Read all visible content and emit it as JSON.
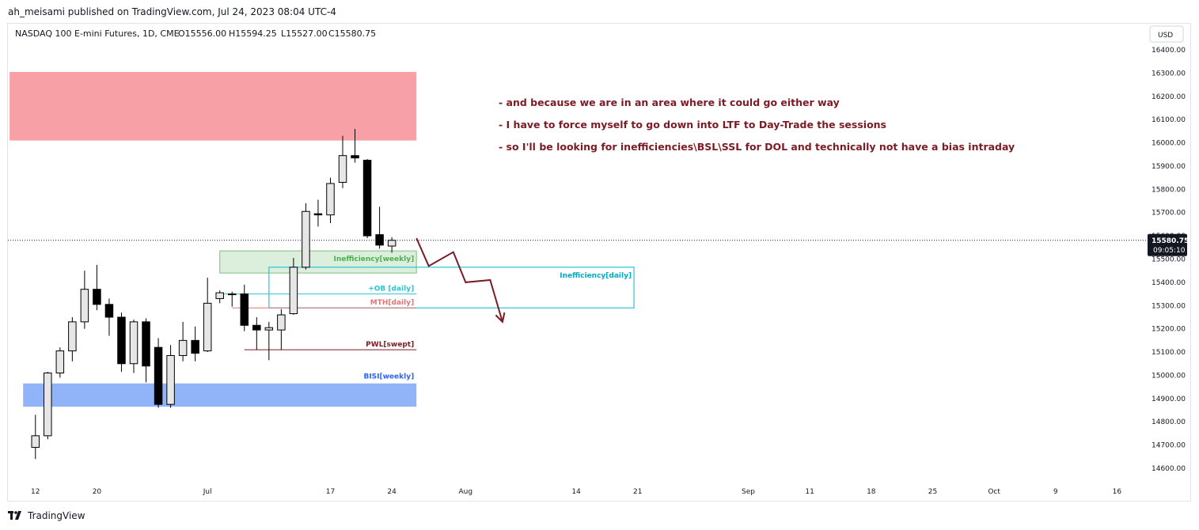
{
  "header": {
    "published_line": "ah_meisami published on TradingView.com, Jul 24, 2023 08:04 UTC-4"
  },
  "footer": {
    "brand": "TradingView"
  },
  "colors": {
    "bull_fill": "#e6e6e6",
    "bear_fill": "#000000",
    "candle_outline": "#000000",
    "note_text": "#7b1b24",
    "arrow": "#7b1b24",
    "price_tag_bg": "#131722"
  },
  "chart_data": {
    "type": "candlestick",
    "symbol_line": {
      "title": "NASDAQ 100 E-mini Futures, 1D, CME",
      "open": "O15556.00",
      "high": "H15594.25",
      "low": "L15527.00",
      "close": "C15580.75"
    },
    "currency_label": "USD",
    "y_range": [
      14540,
      16460
    ],
    "y_ticks": [
      "16400.00",
      "16300.00",
      "16200.00",
      "16100.00",
      "16000.00",
      "15900.00",
      "15800.00",
      "15700.00",
      "15600.00",
      "15500.00",
      "15400.00",
      "15300.00",
      "15200.00",
      "15100.00",
      "15000.00",
      "14900.00",
      "14800.00",
      "14700.00",
      "14600.00"
    ],
    "x_ticks": [
      {
        "label": "12",
        "d": 0.5
      },
      {
        "label": "20",
        "d": 5.5
      },
      {
        "label": "Jul",
        "d": 14.5
      },
      {
        "label": "17",
        "d": 24.5
      },
      {
        "label": "24",
        "d": 29.5
      },
      {
        "label": "Aug",
        "d": 35.5
      },
      {
        "label": "14",
        "d": 44.5
      },
      {
        "label": "21",
        "d": 49.5
      },
      {
        "label": "Sep",
        "d": 58.5
      },
      {
        "label": "11",
        "d": 63.5
      },
      {
        "label": "18",
        "d": 68.5
      },
      {
        "label": "25",
        "d": 73.5
      },
      {
        "label": "Oct",
        "d": 78.5
      },
      {
        "label": "9",
        "d": 83.5
      },
      {
        "label": "16",
        "d": 88.5
      }
    ],
    "candles": [
      {
        "o": 14690,
        "h": 14830,
        "l": 14640,
        "c": 14740
      },
      {
        "o": 14740,
        "h": 15015,
        "l": 14725,
        "c": 15010
      },
      {
        "o": 15010,
        "h": 15120,
        "l": 14990,
        "c": 15105
      },
      {
        "o": 15105,
        "h": 15250,
        "l": 15060,
        "c": 15230
      },
      {
        "o": 15230,
        "h": 15450,
        "l": 15200,
        "c": 15370
      },
      {
        "o": 15370,
        "h": 15475,
        "l": 15280,
        "c": 15305
      },
      {
        "o": 15305,
        "h": 15330,
        "l": 15170,
        "c": 15250
      },
      {
        "o": 15250,
        "h": 15270,
        "l": 15015,
        "c": 15050
      },
      {
        "o": 15050,
        "h": 15240,
        "l": 15010,
        "c": 15230
      },
      {
        "o": 15230,
        "h": 15245,
        "l": 14970,
        "c": 15040
      },
      {
        "o": 15120,
        "h": 15160,
        "l": 14860,
        "c": 14875
      },
      {
        "o": 14875,
        "h": 15130,
        "l": 14860,
        "c": 15085
      },
      {
        "o": 15085,
        "h": 15230,
        "l": 15060,
        "c": 15150
      },
      {
        "o": 15150,
        "h": 15210,
        "l": 15060,
        "c": 15095
      },
      {
        "o": 15105,
        "h": 15420,
        "l": 15100,
        "c": 15310
      },
      {
        "o": 15330,
        "h": 15365,
        "l": 15310,
        "c": 15355
      },
      {
        "o": 15350,
        "h": 15360,
        "l": 15295,
        "c": 15350
      },
      {
        "o": 15350,
        "h": 15390,
        "l": 15190,
        "c": 15215
      },
      {
        "o": 15215,
        "h": 15250,
        "l": 15110,
        "c": 15195
      },
      {
        "o": 15195,
        "h": 15230,
        "l": 15065,
        "c": 15205
      },
      {
        "o": 15195,
        "h": 15285,
        "l": 15110,
        "c": 15260
      },
      {
        "o": 15265,
        "h": 15505,
        "l": 15260,
        "c": 15465
      },
      {
        "o": 15465,
        "h": 15740,
        "l": 15455,
        "c": 15705
      },
      {
        "o": 15695,
        "h": 15755,
        "l": 15640,
        "c": 15690
      },
      {
        "o": 15690,
        "h": 15850,
        "l": 15655,
        "c": 15825
      },
      {
        "o": 15830,
        "h": 16030,
        "l": 15805,
        "c": 15945
      },
      {
        "o": 15945,
        "h": 16060,
        "l": 15915,
        "c": 15935
      },
      {
        "o": 15925,
        "h": 15930,
        "l": 15590,
        "c": 15600
      },
      {
        "o": 15605,
        "h": 15725,
        "l": 15545,
        "c": 15560
      },
      {
        "o": 15556,
        "h": 15594.25,
        "l": 15527,
        "c": 15580.75
      }
    ],
    "current_price": {
      "value": 15580.75,
      "label": "15580.75",
      "countdown": "09:05:10"
    },
    "zones": [
      {
        "name": "premium-zone",
        "d0": -1.6,
        "d1": 31.5,
        "y0": 16010,
        "y1": 16305,
        "fill": "#f7a1a7",
        "stroke": "none",
        "label": ""
      },
      {
        "name": "inefficiency-weekly-zone",
        "d0": 15.5,
        "d1": 31.5,
        "y0": 15440,
        "y1": 15535,
        "fill": "rgba(116,190,116,0.25)",
        "stroke": "#8fc98f",
        "label": "Inefficiency[weekly]",
        "label_color": "#4caf50"
      },
      {
        "name": "inefficiency-daily-zone",
        "d0": 19.5,
        "d1": 49.2,
        "y0": 15290,
        "y1": 15465,
        "fill": "none",
        "stroke": "#26c6da",
        "label": "Inefficiency[daily]",
        "label_color": "#00acc1"
      },
      {
        "name": "bisi-weekly-zone",
        "d0": -0.5,
        "d1": 31.5,
        "y0": 14865,
        "y1": 14965,
        "fill": "rgba(86,138,245,0.65)",
        "stroke": "none",
        "label": "BISI[weekly]",
        "label_color": "#2962ff"
      }
    ],
    "levels": [
      {
        "name": "ob-daily-level",
        "d0": 15.5,
        "d1": 31.5,
        "y": 15350,
        "color": "#26c6da",
        "label": "+OB [daily]"
      },
      {
        "name": "mth-daily-level",
        "d0": 16.5,
        "d1": 31.5,
        "y": 15290,
        "color": "#e57373",
        "label": "MTH[daily]"
      },
      {
        "name": "pwl-swept-level",
        "d0": 17.5,
        "d1": 31.5,
        "y": 15110,
        "color": "#7b1b24",
        "label": "PWL[swept]"
      }
    ],
    "projection": [
      {
        "d": 31.5,
        "y": 15590
      },
      {
        "d": 32.5,
        "y": 15470
      },
      {
        "d": 34.5,
        "y": 15530
      },
      {
        "d": 35.5,
        "y": 15400
      },
      {
        "d": 37.5,
        "y": 15410
      },
      {
        "d": 38.5,
        "y": 15230
      }
    ],
    "annotations": [
      "- and because we are in an area where it could go either way",
      "- I have to force myself to go down into LTF to Day-Trade the sessions",
      "- so I'll be looking for inefficiencies\\BSL\\SSL for DOL and technically not have a bias intraday"
    ]
  }
}
